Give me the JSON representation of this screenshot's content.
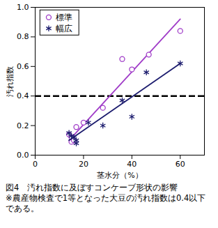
{
  "chart_data": {
    "type": "scatter",
    "xlabel": "茎水分（%）",
    "ylabel": "汚れ指数",
    "caption": [
      "図4　汚れ指数に及ぼすコンケーブ形状の影響",
      "※農産物検査で1等となった大豆の汚れ指数は0.4以下である。"
    ],
    "xlim": [
      0,
      70
    ],
    "xticks": [
      0,
      20,
      40,
      60
    ],
    "ylim": [
      0,
      1.0
    ],
    "yticks": [
      {
        "value": 0,
        "label": "0.0"
      },
      {
        "value": 0.2,
        "label": "0.2"
      },
      {
        "value": 0.4,
        "label": "0.4"
      },
      {
        "value": 0.6,
        "label": "0.6"
      },
      {
        "value": 0.8,
        "label": "0.8"
      },
      {
        "value": 1.0,
        "label": "1.0"
      }
    ],
    "grid": false,
    "legend": "top-left",
    "hline": {
      "value": 0.4,
      "line_style": "dashed",
      "color": "#000000"
    },
    "series": [
      {
        "name": "標準",
        "color": "#a03cc8",
        "marker": "circle",
        "x": [
          14,
          15,
          15,
          16,
          17,
          20,
          28,
          36,
          40,
          47,
          60
        ],
        "values": [
          0.14,
          0.09,
          0.12,
          0.1,
          0.19,
          0.22,
          0.32,
          0.65,
          0.58,
          0.68,
          0.84
        ],
        "fit_x": [
          14,
          60
        ],
        "fit_values": [
          0.1,
          0.92
        ]
      },
      {
        "name": "幅広",
        "color": "#1c1c6e",
        "marker": "asterisk",
        "x": [
          14,
          15,
          16,
          17,
          17,
          22,
          28,
          36,
          40,
          46,
          60
        ],
        "values": [
          0.15,
          0.13,
          0.12,
          0.1,
          0.08,
          0.22,
          0.2,
          0.37,
          0.26,
          0.56,
          0.62
        ],
        "fit_x": [
          14,
          60
        ],
        "fit_values": [
          0.1,
          0.62
        ]
      }
    ]
  }
}
